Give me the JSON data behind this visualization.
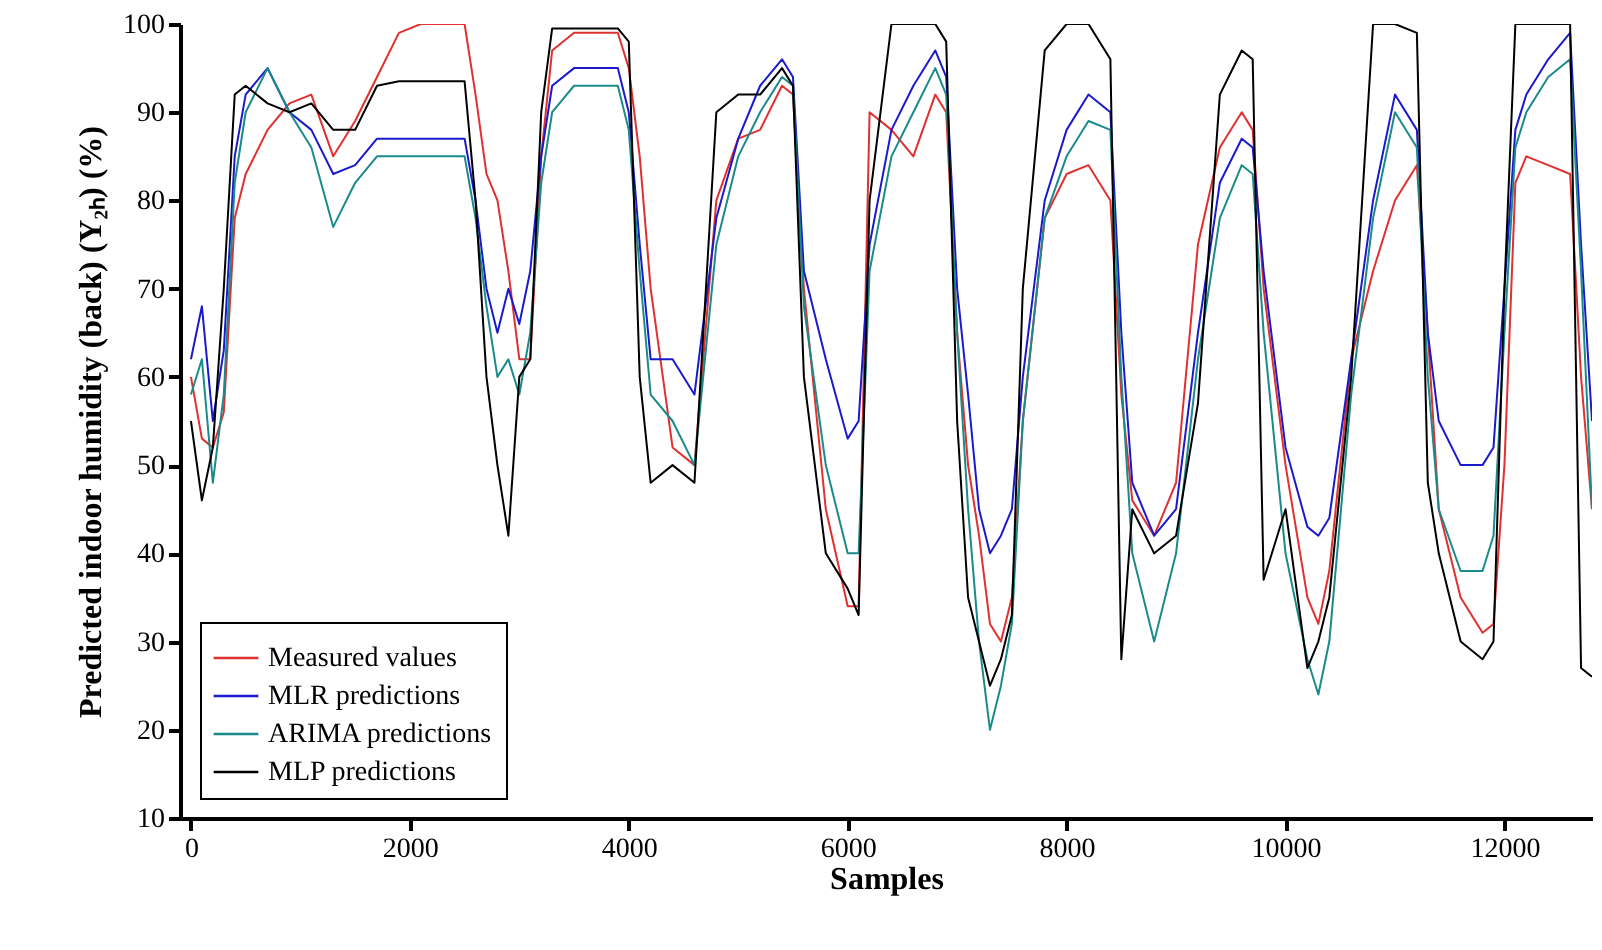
{
  "chart_data": {
    "type": "line",
    "xlabel": "Samples",
    "ylabel": "Predicted indoor humidity (back) (Y₂ₕ) (%)",
    "x": [
      0,
      100,
      200,
      300,
      400,
      500,
      700,
      900,
      1100,
      1300,
      1500,
      1700,
      1900,
      2100,
      2300,
      2500,
      2600,
      2700,
      2800,
      2900,
      3000,
      3100,
      3200,
      3300,
      3500,
      3700,
      3900,
      4000,
      4100,
      4200,
      4400,
      4600,
      4800,
      5000,
      5200,
      5400,
      5500,
      5600,
      5800,
      6000,
      6100,
      6200,
      6400,
      6600,
      6800,
      6900,
      7000,
      7100,
      7200,
      7300,
      7400,
      7500,
      7600,
      7800,
      8000,
      8200,
      8400,
      8500,
      8600,
      8800,
      9000,
      9200,
      9400,
      9600,
      9700,
      9800,
      10000,
      10200,
      10300,
      10400,
      10600,
      10800,
      11000,
      11200,
      11300,
      11400,
      11600,
      11800,
      11900,
      12000,
      12100,
      12200,
      12400,
      12600,
      12700,
      12800
    ],
    "series": [
      {
        "name": "Measured values",
        "color": "#e03030",
        "values": [
          60,
          53,
          52,
          56,
          78,
          83,
          88,
          91,
          92,
          85,
          89,
          94,
          99,
          100,
          100,
          100,
          92,
          83,
          80,
          72,
          62,
          62,
          85,
          97,
          99,
          99,
          99,
          95,
          85,
          70,
          52,
          50,
          80,
          87,
          88,
          93,
          92,
          70,
          45,
          34,
          34,
          90,
          88,
          85,
          92,
          90,
          65,
          50,
          42,
          32,
          30,
          35,
          55,
          78,
          83,
          84,
          80,
          58,
          46,
          42,
          48,
          75,
          86,
          90,
          88,
          70,
          50,
          35,
          32,
          38,
          62,
          72,
          80,
          84,
          65,
          45,
          35,
          31,
          32,
          50,
          82,
          85,
          84,
          83,
          60,
          45
        ]
      },
      {
        "name": "MLR predictions",
        "color": "#1a1acc",
        "values": [
          62,
          68,
          55,
          63,
          85,
          92,
          95,
          90,
          88,
          83,
          84,
          87,
          87,
          87,
          87,
          87,
          80,
          70,
          65,
          70,
          66,
          72,
          85,
          93,
          95,
          95,
          95,
          90,
          75,
          62,
          62,
          58,
          78,
          87,
          93,
          96,
          94,
          72,
          62,
          53,
          55,
          75,
          88,
          93,
          97,
          94,
          70,
          58,
          45,
          40,
          42,
          45,
          60,
          80,
          88,
          92,
          90,
          65,
          48,
          42,
          45,
          65,
          82,
          87,
          86,
          72,
          52,
          43,
          42,
          44,
          62,
          80,
          92,
          88,
          65,
          55,
          50,
          50,
          52,
          70,
          88,
          92,
          96,
          99,
          75,
          55
        ]
      },
      {
        "name": "ARIMA predictions",
        "color": "#1a8a8a",
        "values": [
          58,
          62,
          48,
          58,
          82,
          90,
          95,
          90,
          86,
          77,
          82,
          85,
          85,
          85,
          85,
          85,
          78,
          68,
          60,
          62,
          58,
          65,
          82,
          90,
          93,
          93,
          93,
          88,
          72,
          58,
          55,
          50,
          75,
          85,
          90,
          94,
          93,
          68,
          50,
          40,
          40,
          72,
          85,
          90,
          95,
          92,
          65,
          45,
          30,
          20,
          25,
          32,
          55,
          78,
          85,
          89,
          88,
          60,
          40,
          30,
          40,
          62,
          78,
          84,
          83,
          65,
          40,
          28,
          24,
          30,
          58,
          78,
          90,
          86,
          60,
          45,
          38,
          38,
          42,
          65,
          86,
          90,
          94,
          96,
          72,
          45
        ]
      },
      {
        "name": "MLP predictions",
        "color": "#000000",
        "values": [
          55,
          46,
          52,
          70,
          92,
          93,
          91,
          90,
          91,
          88,
          88,
          93,
          93.5,
          93.5,
          93.5,
          93.5,
          80,
          60,
          50,
          42,
          60,
          62,
          90,
          99.5,
          99.5,
          99.5,
          99.5,
          98,
          60,
          48,
          50,
          48,
          90,
          92,
          92,
          95,
          93,
          60,
          40,
          36,
          33,
          80,
          100,
          100,
          100,
          98,
          55,
          35,
          30,
          25,
          28,
          33,
          70,
          97,
          100,
          100,
          96,
          28,
          45,
          40,
          42,
          57,
          92,
          97,
          96,
          37,
          45,
          27,
          30,
          35,
          60,
          100,
          100,
          99,
          48,
          40,
          30,
          28,
          30,
          70,
          100,
          100,
          100,
          100,
          27,
          26
        ]
      }
    ],
    "xlim": [
      -100,
      12800
    ],
    "xticks": [
      0,
      2000,
      4000,
      6000,
      8000,
      10000,
      12000
    ],
    "ylim": [
      10,
      100
    ],
    "yticks": [
      10,
      20,
      30,
      40,
      50,
      60,
      70,
      80,
      90,
      100
    ],
    "grid": false,
    "legend": "bottom left",
    "marker": "none",
    "line_style": "solid"
  }
}
